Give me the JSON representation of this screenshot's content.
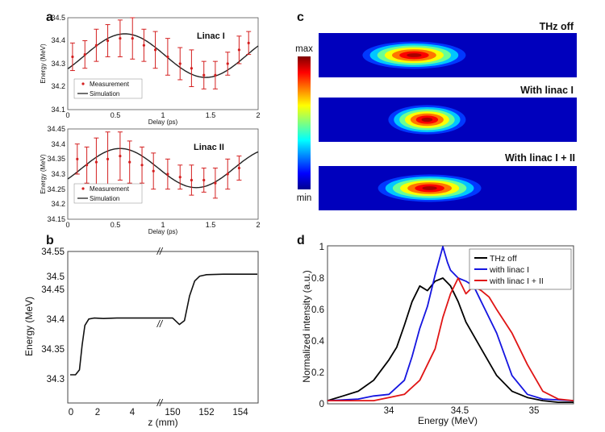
{
  "panels": {
    "a": "a",
    "b": "b",
    "c": "c",
    "d": "d"
  },
  "chart_data": [
    {
      "panel": "a",
      "type": "scatter",
      "xlabel": "Delay (ps)",
      "ylabel": "Energy (MeV)",
      "xlim": [
        0,
        2
      ],
      "ylim": [
        34.1,
        34.5
      ],
      "xticks": [
        "0",
        "0.5",
        "1",
        "1.5",
        "2"
      ],
      "yticks": [
        "34.1",
        "34.2",
        "34.3",
        "34.4",
        "34.5"
      ],
      "annotation": "Linac I",
      "legend": [
        "Measurement",
        "Simulation"
      ],
      "measurement": {
        "x": [
          0.05,
          0.18,
          0.3,
          0.42,
          0.55,
          0.68,
          0.8,
          0.92,
          1.05,
          1.18,
          1.3,
          1.43,
          1.55,
          1.68,
          1.8,
          1.9
        ],
        "y": [
          34.33,
          34.34,
          34.38,
          34.4,
          34.41,
          34.41,
          34.38,
          34.36,
          34.33,
          34.3,
          34.28,
          34.25,
          34.25,
          34.3,
          34.36,
          34.39
        ],
        "err": [
          0.06,
          0.06,
          0.07,
          0.07,
          0.08,
          0.09,
          0.07,
          0.08,
          0.08,
          0.07,
          0.08,
          0.06,
          0.06,
          0.05,
          0.06,
          0.05
        ]
      },
      "simulation": {
        "offset": 34.335,
        "amplitude": 0.095,
        "peak": 0.6,
        "period": 1.7
      }
    },
    {
      "panel": "a2",
      "type": "scatter",
      "xlabel": "Delay (ps)",
      "ylabel": "Energy (MeV)",
      "xlim": [
        0,
        2
      ],
      "ylim": [
        34.15,
        34.45
      ],
      "xticks": [
        "0",
        "0.5",
        "1",
        "1.5",
        "2"
      ],
      "yticks": [
        "34.15",
        "34.2",
        "34.25",
        "34.3",
        "34.35",
        "34.4",
        "34.45"
      ],
      "annotation": "Linac II",
      "legend": [
        "Measurement",
        "Simulation"
      ],
      "measurement": {
        "x": [
          0.1,
          0.2,
          0.3,
          0.42,
          0.55,
          0.65,
          0.78,
          0.9,
          1.05,
          1.18,
          1.3,
          1.43,
          1.55,
          1.68,
          1.8
        ],
        "y": [
          34.35,
          34.33,
          34.34,
          34.35,
          34.36,
          34.34,
          34.33,
          34.31,
          34.3,
          34.29,
          34.28,
          34.28,
          34.27,
          34.3,
          34.32
        ],
        "err": [
          0.05,
          0.06,
          0.08,
          0.09,
          0.08,
          0.07,
          0.06,
          0.06,
          0.05,
          0.04,
          0.05,
          0.04,
          0.05,
          0.05,
          0.04
        ]
      },
      "simulation": {
        "offset": 34.32,
        "amplitude": 0.065,
        "peak": 0.55,
        "period": 1.6
      }
    },
    {
      "panel": "b",
      "type": "line",
      "xlabel": "z (mm)",
      "ylabel": "Energy (MeV)",
      "ylim": [
        34.3,
        34.55
      ],
      "xticks": [
        "0",
        "2",
        "4",
        "150",
        "152",
        "154"
      ],
      "yticks": [
        "34.3",
        "34.35",
        "34.4",
        "34.45",
        "34.5",
        "34.55"
      ],
      "break_marks": "//",
      "series": [
        {
          "segments": [
            {
              "x": [
                0,
                0.4,
                0.7,
                0.9,
                1.1,
                1.4,
                1.8,
                2.5,
                3.5,
                4.0,
                5.0
              ],
              "y": [
                34.3,
                34.3,
                34.31,
                34.36,
                34.4,
                34.413,
                34.415,
                34.414,
                34.415,
                34.415,
                34.415
              ]
            },
            {
              "x": [
                149,
                150,
                150.4,
                150.7,
                151.0,
                151.3,
                151.6,
                152.0,
                153.0,
                154.0,
                155.0
              ],
              "y": [
                34.415,
                34.415,
                34.402,
                34.41,
                34.46,
                34.49,
                34.5,
                34.503,
                34.504,
                34.504,
                34.504
              ]
            }
          ]
        }
      ]
    },
    {
      "panel": "d",
      "type": "line",
      "xlabel": "Energy (MeV)",
      "ylabel": "Normalized intensity (a.u.)",
      "xlim": [
        33.6,
        35.2
      ],
      "ylim": [
        0,
        1
      ],
      "xticks": [
        "34",
        "34.5",
        "35"
      ],
      "yticks": [
        "0",
        "0.2",
        "0.4",
        "0.6",
        "0.8",
        "1"
      ],
      "legend_position": "top-right",
      "series": [
        {
          "name": "THz off",
          "color": "#000000",
          "x": [
            33.6,
            33.7,
            33.8,
            33.9,
            34.0,
            34.05,
            34.1,
            34.15,
            34.2,
            34.25,
            34.3,
            34.35,
            34.4,
            34.45,
            34.5,
            34.6,
            34.7,
            34.8,
            34.9,
            35.0,
            35.1,
            35.2
          ],
          "y": [
            0.02,
            0.05,
            0.08,
            0.15,
            0.28,
            0.36,
            0.5,
            0.65,
            0.75,
            0.72,
            0.78,
            0.8,
            0.75,
            0.65,
            0.52,
            0.35,
            0.18,
            0.08,
            0.04,
            0.02,
            0.01,
            0.01
          ]
        },
        {
          "name": "with linac I",
          "color": "#1515e0",
          "x": [
            33.6,
            33.8,
            33.9,
            34.0,
            34.1,
            34.15,
            34.2,
            34.25,
            34.3,
            34.35,
            34.38,
            34.4,
            34.45,
            34.5,
            34.55,
            34.6,
            34.7,
            34.8,
            34.9,
            35.0,
            35.2
          ],
          "y": [
            0.02,
            0.03,
            0.05,
            0.06,
            0.15,
            0.3,
            0.48,
            0.62,
            0.82,
            1.0,
            0.9,
            0.85,
            0.8,
            0.78,
            0.75,
            0.65,
            0.45,
            0.18,
            0.06,
            0.03,
            0.02
          ]
        },
        {
          "name": "with linac I + II",
          "color": "#e01515",
          "x": [
            33.6,
            33.9,
            34.0,
            34.1,
            34.2,
            34.3,
            34.35,
            34.4,
            34.45,
            34.5,
            34.55,
            34.6,
            34.65,
            34.7,
            34.8,
            34.9,
            35.0,
            35.1,
            35.2
          ],
          "y": [
            0.02,
            0.02,
            0.04,
            0.06,
            0.15,
            0.35,
            0.55,
            0.7,
            0.8,
            0.7,
            0.75,
            0.72,
            0.68,
            0.6,
            0.45,
            0.25,
            0.08,
            0.03,
            0.02
          ]
        }
      ]
    },
    {
      "panel": "c",
      "type": "heatmap",
      "colorbar": {
        "max": "max",
        "min": "min"
      },
      "images": [
        {
          "label": "THz off",
          "center": 0.37,
          "width": 0.2,
          "height": 0.28,
          "peak": 1.0
        },
        {
          "label": "With linac I",
          "center": 0.42,
          "width": 0.15,
          "height": 0.3,
          "peak": 1.0
        },
        {
          "label": "With linac I + II",
          "center": 0.43,
          "width": 0.2,
          "height": 0.28,
          "peak": 1.0
        }
      ]
    }
  ]
}
